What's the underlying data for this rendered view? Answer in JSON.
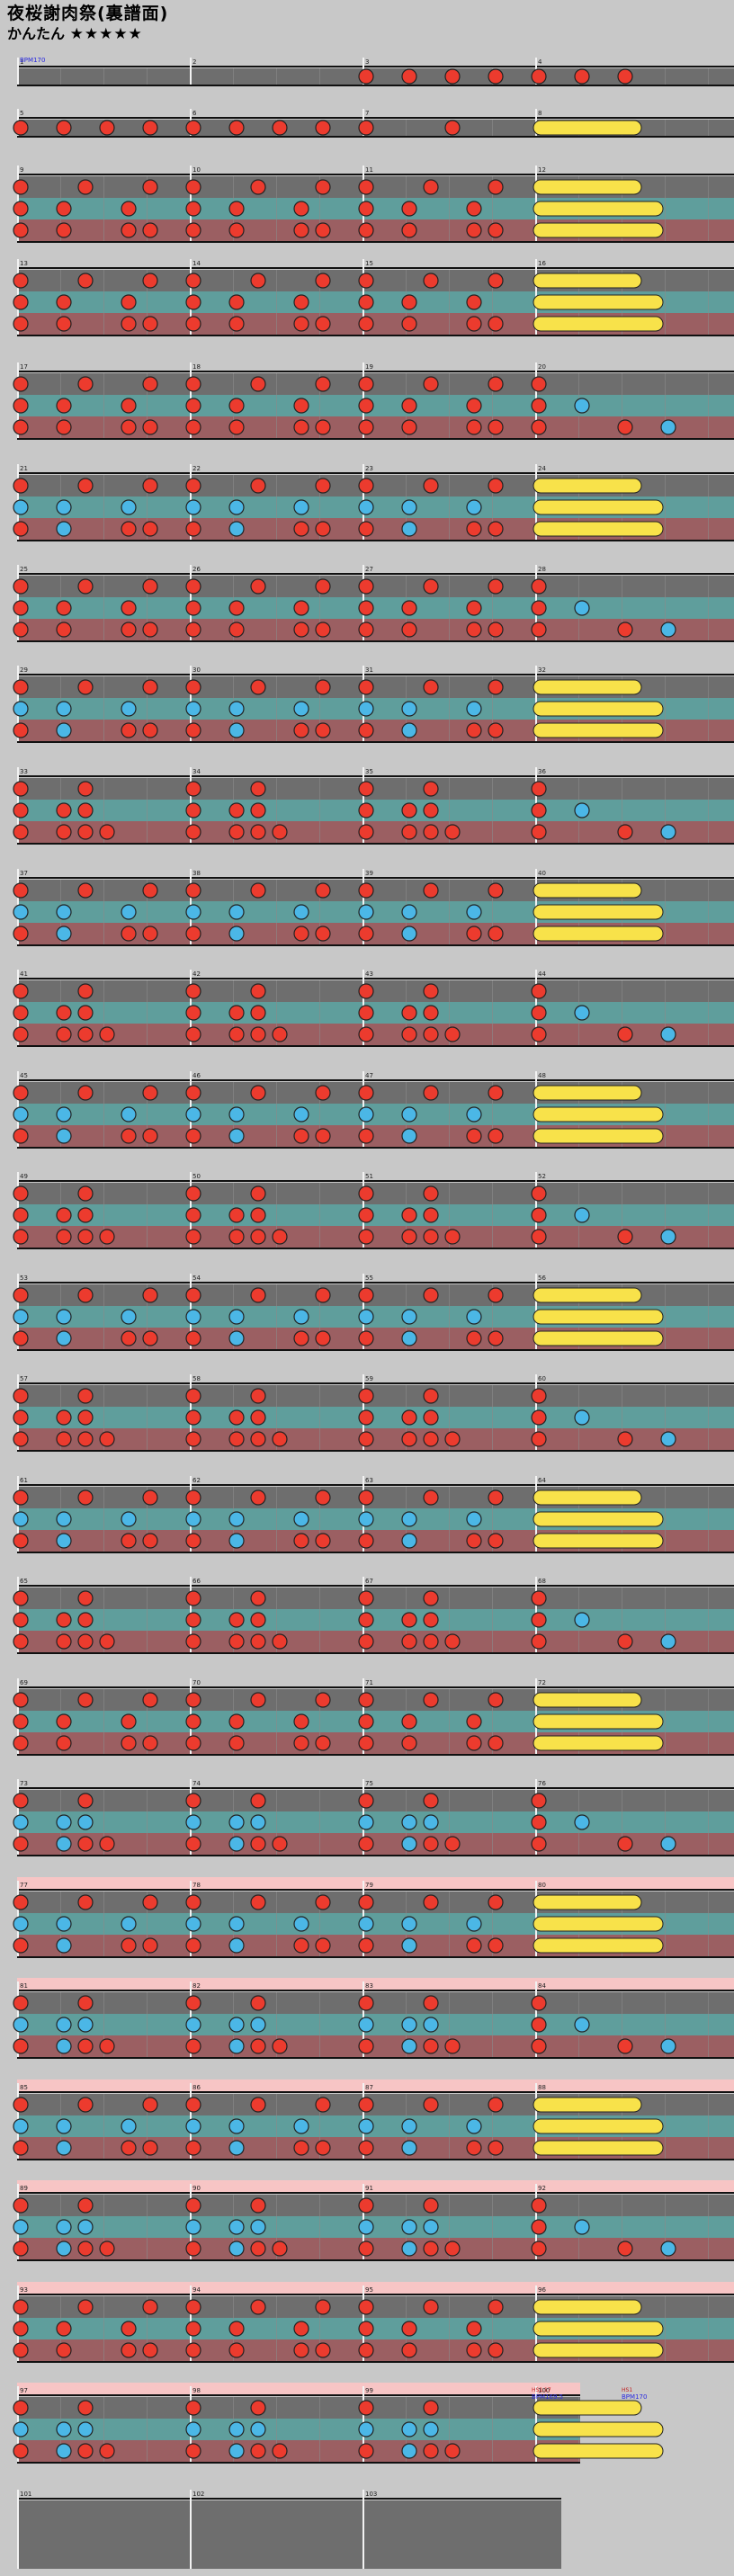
{
  "header": {
    "title": "夜桜謝肉祭(裏譜面)",
    "difficulty": "かんたん",
    "stars": "★★★★★"
  },
  "chart_events": {
    "bpm_start": "BPM170",
    "fast_marker": "BPM169.5",
    "bpm_end": "BPM170",
    "tag_1": "HS1.17",
    "tag_2": "HS1"
  },
  "colors": {
    "background": "#c8c8c8",
    "lane_gray": "#6e6e6e",
    "lane_teal": "#5f9e9c",
    "lane_rose": "#9b5f62",
    "band_pink": "#f7c5c5",
    "don": "#ec3b2e",
    "ka": "#4bb7e6",
    "roll": "#f8e24a"
  },
  "chart_data": {
    "type": "taiko-score",
    "measure_numbers": [
      1,
      2,
      3,
      4,
      5,
      6,
      7,
      8,
      9,
      10,
      11,
      12,
      13,
      14,
      15,
      16,
      17,
      18,
      19,
      20,
      21,
      22,
      23,
      24,
      25,
      26,
      27,
      28,
      29,
      30,
      31,
      32,
      33,
      34,
      35,
      36,
      37,
      38,
      39,
      40,
      41,
      42,
      43,
      44,
      45,
      46,
      47,
      48,
      49,
      50,
      51,
      52,
      53,
      54,
      55,
      56,
      57,
      58,
      59,
      60,
      61,
      62,
      63,
      64,
      65,
      66,
      67,
      68,
      69,
      70,
      71,
      72,
      73,
      74,
      75,
      76,
      77,
      78,
      79,
      80,
      81,
      82,
      83,
      84,
      85,
      86,
      87,
      88,
      89,
      90,
      91,
      92,
      93,
      94,
      95,
      96,
      97,
      98,
      99,
      100,
      101,
      102,
      103
    ],
    "note_legend": {
      "d": "ドン (red)",
      "k": "カッ (blue)",
      "R": "連打 (yellow roll)"
    }
  }
}
